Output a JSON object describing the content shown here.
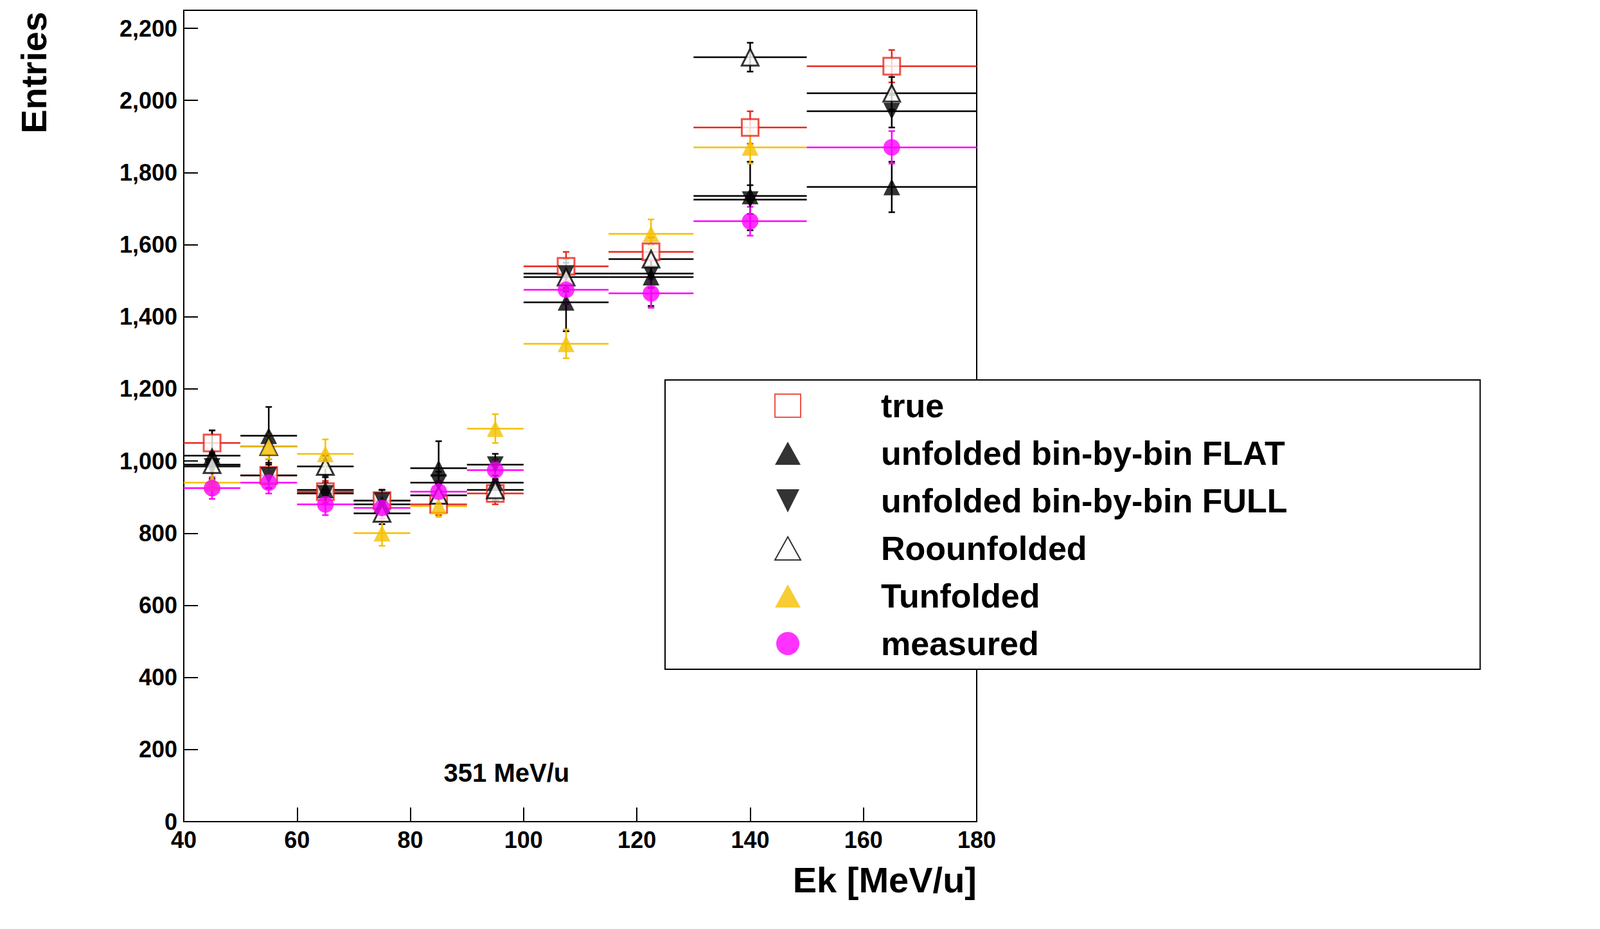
{
  "chart_data": {
    "type": "scatter",
    "x_label": "Ek [MeV/u]",
    "y_label": "Entries",
    "annotations": [
      {
        "text": "351 MeV/u",
        "x": 97,
        "y": 136
      }
    ],
    "x": [
      45,
      55,
      65,
      75,
      85,
      95,
      107.5,
      122.5,
      140,
      165
    ],
    "x_err": [
      5,
      5,
      5,
      5,
      5,
      5,
      7.5,
      7.5,
      10,
      15
    ],
    "series": [
      {
        "name": "true",
        "color": "#e8281e",
        "marker": "square_open",
        "values": [
          1050,
          960,
          915,
          890,
          880,
          910,
          1540,
          1580,
          1925,
          2095
        ],
        "y_err": [
          35,
          35,
          30,
          30,
          30,
          30,
          40,
          40,
          45,
          45
        ]
      },
      {
        "name": "unfolded bin-by-bin FLAT",
        "color": "#000000",
        "marker": "triangle_up",
        "values": [
          1015,
          1070,
          920,
          880,
          980,
          940,
          1440,
          1510,
          1735,
          1760
        ],
        "y_err": [
          70,
          80,
          40,
          40,
          75,
          50,
          80,
          80,
          95,
          70
        ]
      },
      {
        "name": "unfolded bin-by-bin FULL",
        "color": "#000000",
        "marker": "triangle_down",
        "values": [
          985,
          960,
          910,
          890,
          940,
          990,
          1520,
          1520,
          1725,
          1970
        ],
        "y_err": [
          35,
          35,
          30,
          30,
          30,
          30,
          40,
          40,
          40,
          45
        ]
      },
      {
        "name": "Roounfolded",
        "color": "#000000",
        "marker": "triangle_up_open",
        "values": [
          990,
          1040,
          985,
          855,
          905,
          920,
          1510,
          1560,
          2120,
          2020
        ],
        "y_err": [
          35,
          35,
          30,
          30,
          30,
          30,
          40,
          40,
          40,
          45
        ]
      },
      {
        "name": "Tunfolded",
        "color": "#f5c000",
        "marker": "triangle_up",
        "values": [
          940,
          1040,
          1020,
          800,
          875,
          1090,
          1325,
          1630,
          1870,
          null
        ],
        "y_err": [
          35,
          35,
          40,
          35,
          30,
          40,
          40,
          40,
          45,
          null
        ]
      },
      {
        "name": "measured",
        "color": "#ff00ff",
        "marker": "circle",
        "values": [
          925,
          940,
          880,
          870,
          915,
          975,
          1475,
          1465,
          1665,
          1870
        ],
        "y_err": [
          30,
          30,
          30,
          30,
          30,
          30,
          40,
          40,
          40,
          45
        ]
      }
    ],
    "xlim": [
      40,
      180
    ],
    "xticks": [
      40,
      60,
      80,
      100,
      120,
      140,
      160,
      180
    ],
    "ylim": [
      0,
      2250
    ],
    "yticks": [
      0,
      200,
      400,
      600,
      800,
      1000,
      1200,
      1400,
      1600,
      1800,
      2000,
      2200
    ],
    "grid": false,
    "legend": "right"
  }
}
